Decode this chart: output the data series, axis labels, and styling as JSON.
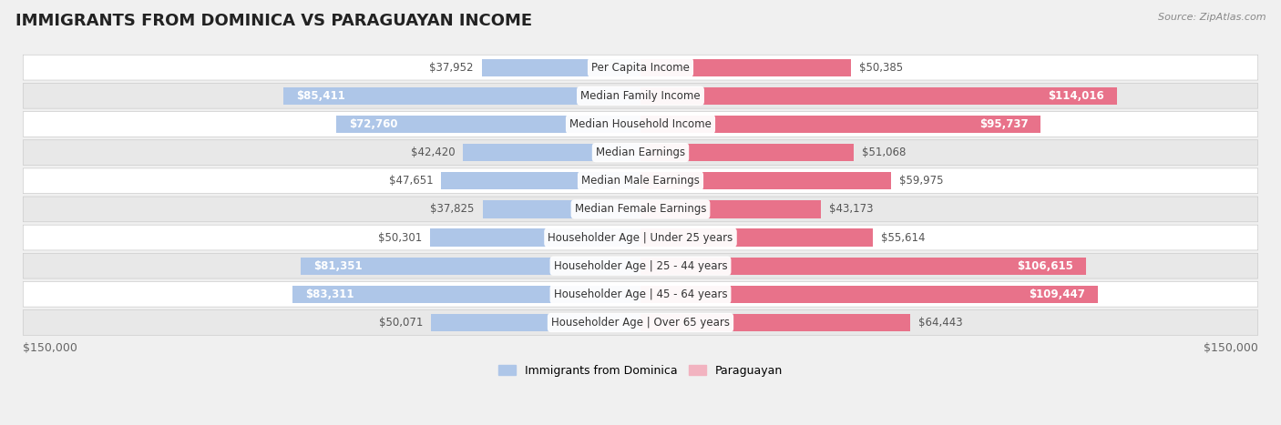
{
  "title": "IMMIGRANTS FROM DOMINICA VS PARAGUAYAN INCOME",
  "source": "Source: ZipAtlas.com",
  "categories": [
    "Per Capita Income",
    "Median Family Income",
    "Median Household Income",
    "Median Earnings",
    "Median Male Earnings",
    "Median Female Earnings",
    "Householder Age | Under 25 years",
    "Householder Age | 25 - 44 years",
    "Householder Age | 45 - 64 years",
    "Householder Age | Over 65 years"
  ],
  "dominica_values": [
    37952,
    85411,
    72760,
    42420,
    47651,
    37825,
    50301,
    81351,
    83311,
    50071
  ],
  "paraguayan_values": [
    50385,
    114016,
    95737,
    51068,
    59975,
    43173,
    55614,
    106615,
    109447,
    64443
  ],
  "dominica_labels": [
    "$37,952",
    "$85,411",
    "$72,760",
    "$42,420",
    "$47,651",
    "$37,825",
    "$50,301",
    "$81,351",
    "$83,311",
    "$50,071"
  ],
  "paraguayan_labels": [
    "$50,385",
    "$114,016",
    "$95,737",
    "$51,068",
    "$59,975",
    "$43,173",
    "$55,614",
    "$106,615",
    "$109,447",
    "$64,443"
  ],
  "dominica_color_strong": "#5b8fd4",
  "dominica_color_light": "#aec6e8",
  "paraguayan_color_strong": "#e8728a",
  "paraguayan_color_light": "#f2b3c0",
  "max_value": 150000,
  "bar_height": 0.62,
  "background_color": "#f0f0f0",
  "row_bg_light": "#ffffff",
  "row_bg_dark": "#e8e8e8",
  "legend_dominica": "Immigrants from Dominica",
  "legend_paraguayan": "Paraguayan",
  "xlabel_left": "$150,000",
  "xlabel_right": "$150,000",
  "title_fontsize": 13,
  "label_fontsize": 8.5,
  "category_fontsize": 8.5,
  "axis_fontsize": 9,
  "paraguayan_inside_threshold": 90000,
  "dominica_inside_threshold": 70000
}
